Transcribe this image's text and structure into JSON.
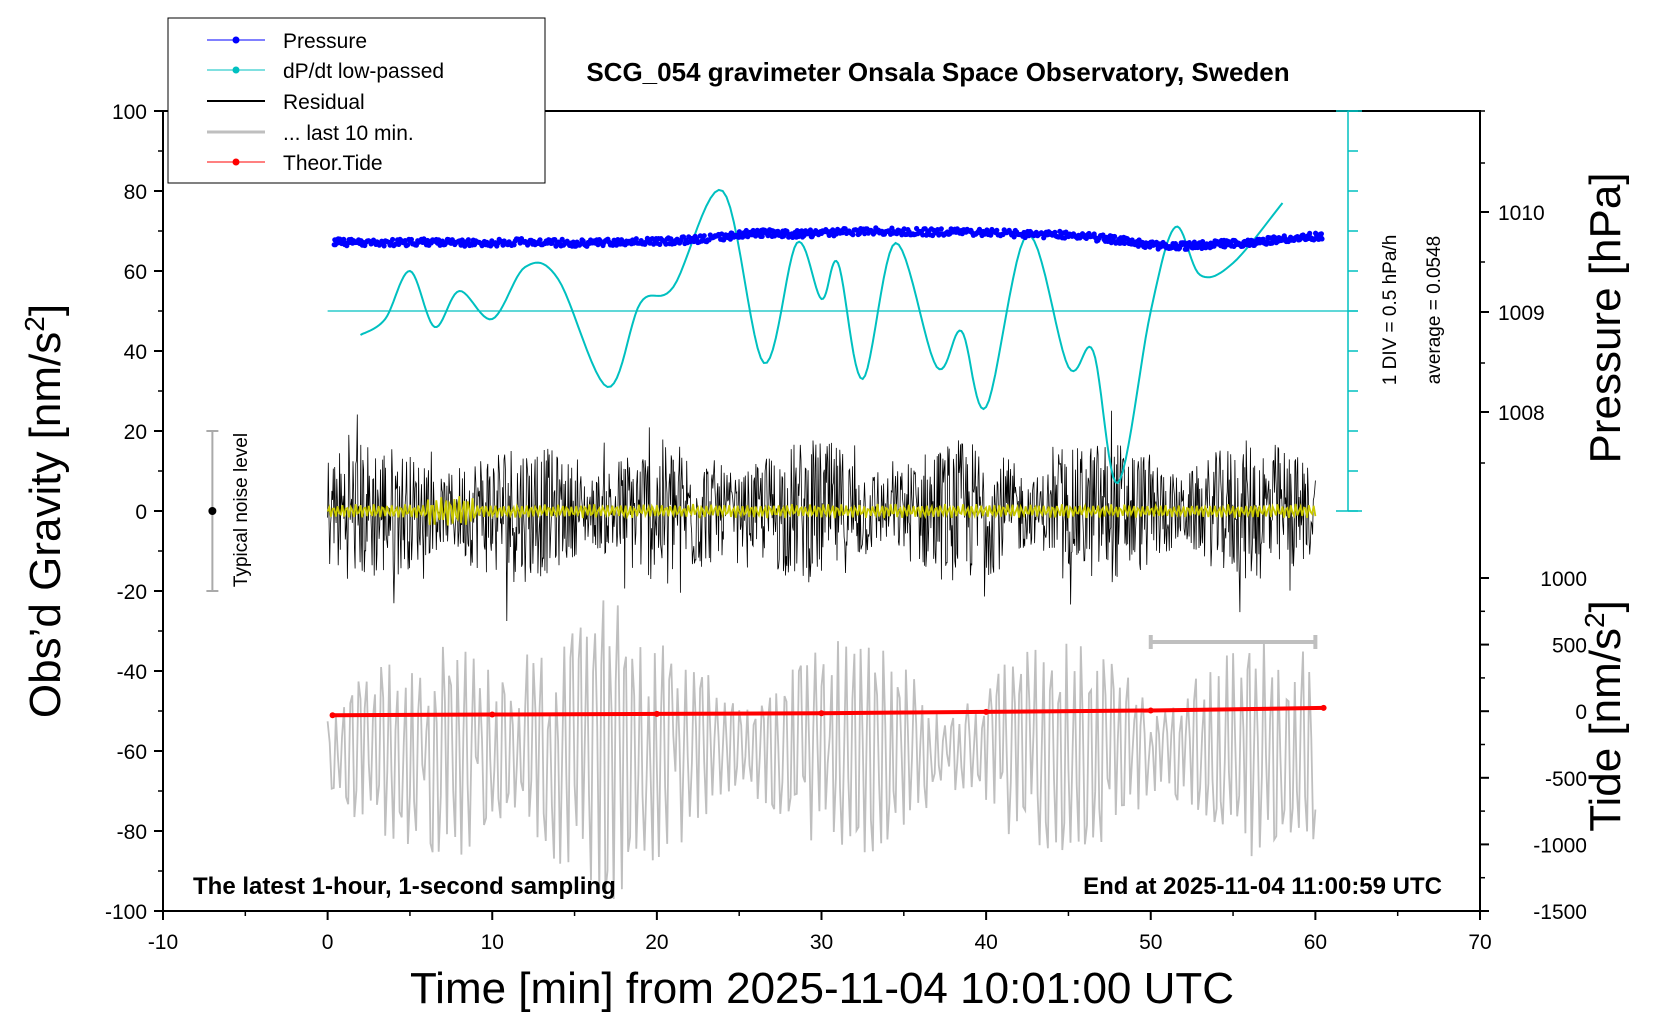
{
  "chart_data": {
    "type": "line",
    "title": "SCG_054 gravimeter Onsala Space Observatory, Sweden",
    "xlabel": "Time [min] from 2025-11-04 10:01:00 UTC",
    "ylabel_left_main": "Obs’d Gravity [nm/s",
    "ylabel_left_sup": "2",
    "ylabel_left_end": "]",
    "ylabel_right_top": "Pressure [hPa]",
    "ylabel_right_bottom_main": "Tide [nm/s",
    "ylabel_right_bottom_sup": "2",
    "ylabel_right_bottom_end": "]",
    "xlim": [
      -10,
      70
    ],
    "ylim": [
      -100,
      100
    ],
    "x_ticks": [
      "-10",
      "0",
      "10",
      "20",
      "30",
      "40",
      "50",
      "60",
      "70"
    ],
    "y_ticks": [
      "-100",
      "-80",
      "-60",
      "-40",
      "-20",
      "0",
      "20",
      "40",
      "60",
      "80",
      "100"
    ],
    "pressure_axis": {
      "ticks": [
        "1010",
        "1009",
        "1008"
      ],
      "values": [
        1010,
        1009,
        1008
      ]
    },
    "tide_axis": {
      "ticks": [
        "1000",
        "500",
        "0",
        "-500",
        "-1000",
        "-1500"
      ],
      "values": [
        1000,
        500,
        0,
        -500,
        -1000,
        -1500
      ],
      "range": [
        -1500,
        1000
      ]
    },
    "legend": {
      "placement": "top-left",
      "entries": [
        {
          "label": "Pressure",
          "color": "#0000ff",
          "marker": true
        },
        {
          "label": "dP/dt low-passed",
          "color": "#00c0c0",
          "marker": true
        },
        {
          "label": "Residual",
          "color": "#000000",
          "marker": false
        },
        {
          "label": "... last 10 min.",
          "color": "#bfbfbf",
          "marker": false
        },
        {
          "label": "Theor.Tide",
          "color": "#ff0000",
          "marker": true
        }
      ]
    },
    "annotations": {
      "noise": "Typical noise level",
      "div": "1 DIV = 0.5 hPa/h",
      "average": "average = 0.0548",
      "bottom_left": "The latest 1-hour, 1-second sampling",
      "bottom_right": "End at 2025-11-04 11:00:59 UTC"
    },
    "noise_bar": {
      "x": -7,
      "y_center": 0,
      "y_min": -20,
      "y_max": 20
    },
    "last10_bar": {
      "x_start": 50,
      "x_end": 60
    },
    "series": [
      {
        "name": "Pressure",
        "color": "#0000ff",
        "unit": "hPa",
        "x": [
          0.4,
          3,
          6,
          9,
          12,
          15,
          18,
          21,
          24,
          26,
          28,
          30,
          33,
          36,
          39,
          42,
          45,
          48,
          50,
          52,
          54,
          56,
          58,
          60.4
        ],
        "y": [
          1009.7,
          1009.69,
          1009.7,
          1009.69,
          1009.7,
          1009.69,
          1009.7,
          1009.71,
          1009.75,
          1009.79,
          1009.78,
          1009.79,
          1009.81,
          1009.8,
          1009.8,
          1009.78,
          1009.77,
          1009.72,
          1009.67,
          1009.66,
          1009.68,
          1009.69,
          1009.73,
          1009.76
        ]
      },
      {
        "name": "dP/dt low-passed",
        "color": "#00c0c0",
        "unit": "nm/s2 scale",
        "x": [
          2,
          3.5,
          5,
          6.5,
          8,
          10,
          12,
          14,
          17,
          19,
          21,
          24,
          26.5,
          28.5,
          30,
          31,
          32.5,
          34.5,
          37,
          38.5,
          40,
          42.5,
          45,
          46.5,
          48,
          50,
          51.5,
          53,
          55,
          58
        ],
        "y": [
          44,
          48,
          60,
          46,
          55,
          48,
          61,
          58,
          31,
          52,
          56,
          80,
          37,
          67,
          53,
          62,
          33,
          67,
          36,
          45,
          26,
          69,
          36,
          40,
          7,
          50,
          71,
          59,
          62,
          77
        ]
      },
      {
        "name": "Residual",
        "color": "#000000",
        "x_range": [
          0,
          60
        ],
        "amplitude": 30
      },
      {
        "name": "Residual (low-passed)",
        "color": "#c8c800",
        "x_range": [
          0,
          60
        ]
      },
      {
        "name": "... last 10 min.",
        "color": "#bfbfbf",
        "x_range": [
          0,
          60
        ],
        "center": -58
      },
      {
        "name": "Theor.Tide",
        "color": "#ff0000",
        "unit": "nm/s2",
        "x": [
          0.3,
          10,
          20,
          30,
          40,
          50,
          60.5
        ],
        "y": [
          -30,
          -25,
          -20,
          -15,
          -5,
          5,
          25
        ]
      }
    ]
  }
}
